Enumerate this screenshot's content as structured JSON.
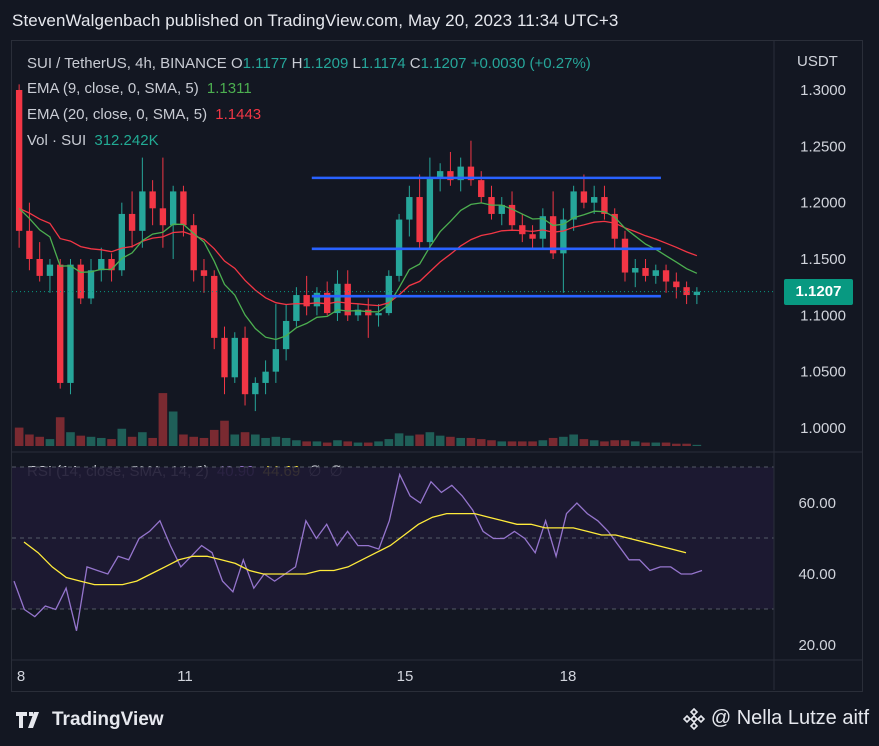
{
  "header": "StevenWalgenbach published on TradingView.com, May 20, 2023 11:34 UTC+3",
  "symbol": {
    "name": "SUI / TetherUS, 4h, BINANCE",
    "open_label": "O",
    "open": "1.1177",
    "high_label": "H",
    "high": "1.1209",
    "low_label": "L",
    "low": "1.1174",
    "close_label": "C",
    "close": "1.1207",
    "change": "+0.0030 (+0.27%)"
  },
  "indicators": {
    "ema9_label": "EMA (9, close, 0, SMA, 5)",
    "ema9_value": "1.1311",
    "ema20_label": "EMA (20, close, 0, SMA, 5)",
    "ema20_value": "1.1443",
    "vol_label": "Vol · SUI",
    "vol_value": "312.242K",
    "rsi_label": "RSI (14, close, SMA, 14, 2)",
    "rsi_value": "40.90",
    "rsi_ma_value": "44.69",
    "rsi_extra1": "∅",
    "rsi_extra2": "∅"
  },
  "price_axis": {
    "unit": "USDT",
    "ticks": [
      "1.3000",
      "1.2500",
      "1.2000",
      "1.1500",
      "1.1000",
      "1.0500",
      "1.0000"
    ],
    "current_price": "1.1207"
  },
  "rsi_axis": {
    "ticks": [
      "60.00",
      "40.00",
      "20.00"
    ]
  },
  "time_axis": {
    "ticks": [
      "8",
      "11",
      "15",
      "18"
    ]
  },
  "footer": {
    "logo": "TradingView",
    "credit": "@ Nella Lutze aitf"
  },
  "colors": {
    "background": "#131722",
    "up": "#26a69a",
    "down": "#f23645",
    "ema9": "#4caf50",
    "ema20": "#f23645",
    "channel": "#2962ff",
    "rsi": "#9575cd",
    "rsi_ma": "#ffeb3b",
    "badge": "#089981"
  },
  "chart_data": {
    "type": "candlestick",
    "price_range": [
      0.985,
      1.315
    ],
    "rsi_range": [
      18,
      68
    ],
    "channel_lines": [
      {
        "from_index": 29,
        "to_index": 62,
        "value": 1.222
      },
      {
        "from_index": 29,
        "to_index": 62,
        "value": 1.159
      },
      {
        "from_index": 29,
        "to_index": 62,
        "value": 1.117
      }
    ],
    "candles": [
      {
        "o": 1.3,
        "h": 1.305,
        "l": 1.16,
        "c": 1.175,
        "v": 0.16
      },
      {
        "o": 1.175,
        "h": 1.2,
        "l": 1.14,
        "c": 1.15,
        "v": 0.1
      },
      {
        "o": 1.15,
        "h": 1.165,
        "l": 1.13,
        "c": 1.135,
        "v": 0.08
      },
      {
        "o": 1.135,
        "h": 1.15,
        "l": 1.12,
        "c": 1.145,
        "v": 0.06
      },
      {
        "o": 1.145,
        "h": 1.15,
        "l": 1.035,
        "c": 1.04,
        "v": 0.25
      },
      {
        "o": 1.04,
        "h": 1.15,
        "l": 1.03,
        "c": 1.145,
        "v": 0.12
      },
      {
        "o": 1.145,
        "h": 1.15,
        "l": 1.11,
        "c": 1.115,
        "v": 0.09
      },
      {
        "o": 1.115,
        "h": 1.15,
        "l": 1.11,
        "c": 1.14,
        "v": 0.08
      },
      {
        "o": 1.14,
        "h": 1.16,
        "l": 1.13,
        "c": 1.15,
        "v": 0.07
      },
      {
        "o": 1.15,
        "h": 1.155,
        "l": 1.13,
        "c": 1.14,
        "v": 0.06
      },
      {
        "o": 1.14,
        "h": 1.2,
        "l": 1.135,
        "c": 1.19,
        "v": 0.15
      },
      {
        "o": 1.19,
        "h": 1.21,
        "l": 1.16,
        "c": 1.175,
        "v": 0.08
      },
      {
        "o": 1.175,
        "h": 1.24,
        "l": 1.16,
        "c": 1.21,
        "v": 0.12
      },
      {
        "o": 1.21,
        "h": 1.22,
        "l": 1.18,
        "c": 1.195,
        "v": 0.07
      },
      {
        "o": 1.195,
        "h": 1.24,
        "l": 1.16,
        "c": 1.18,
        "v": 0.46
      },
      {
        "o": 1.18,
        "h": 1.215,
        "l": 1.15,
        "c": 1.21,
        "v": 0.3
      },
      {
        "o": 1.21,
        "h": 1.215,
        "l": 1.17,
        "c": 1.18,
        "v": 0.1
      },
      {
        "o": 1.18,
        "h": 1.19,
        "l": 1.13,
        "c": 1.14,
        "v": 0.08
      },
      {
        "o": 1.14,
        "h": 1.15,
        "l": 1.12,
        "c": 1.135,
        "v": 0.07
      },
      {
        "o": 1.135,
        "h": 1.14,
        "l": 1.07,
        "c": 1.08,
        "v": 0.14
      },
      {
        "o": 1.08,
        "h": 1.09,
        "l": 1.03,
        "c": 1.045,
        "v": 0.22
      },
      {
        "o": 1.045,
        "h": 1.085,
        "l": 1.04,
        "c": 1.08,
        "v": 0.1
      },
      {
        "o": 1.08,
        "h": 1.09,
        "l": 1.02,
        "c": 1.03,
        "v": 0.12
      },
      {
        "o": 1.03,
        "h": 1.045,
        "l": 1.015,
        "c": 1.04,
        "v": 0.1
      },
      {
        "o": 1.04,
        "h": 1.06,
        "l": 1.03,
        "c": 1.05,
        "v": 0.07
      },
      {
        "o": 1.05,
        "h": 1.11,
        "l": 1.04,
        "c": 1.07,
        "v": 0.08
      },
      {
        "o": 1.07,
        "h": 1.11,
        "l": 1.06,
        "c": 1.095,
        "v": 0.07
      },
      {
        "o": 1.095,
        "h": 1.125,
        "l": 1.09,
        "c": 1.118,
        "v": 0.05
      },
      {
        "o": 1.118,
        "h": 1.135,
        "l": 1.1,
        "c": 1.108,
        "v": 0.04
      },
      {
        "o": 1.108,
        "h": 1.125,
        "l": 1.1,
        "c": 1.12,
        "v": 0.04
      },
      {
        "o": 1.12,
        "h": 1.13,
        "l": 1.1,
        "c": 1.102,
        "v": 0.03
      },
      {
        "o": 1.102,
        "h": 1.14,
        "l": 1.095,
        "c": 1.128,
        "v": 0.05
      },
      {
        "o": 1.128,
        "h": 1.14,
        "l": 1.095,
        "c": 1.1,
        "v": 0.04
      },
      {
        "o": 1.1,
        "h": 1.11,
        "l": 1.095,
        "c": 1.105,
        "v": 0.03
      },
      {
        "o": 1.105,
        "h": 1.115,
        "l": 1.08,
        "c": 1.1,
        "v": 0.03
      },
      {
        "o": 1.1,
        "h": 1.11,
        "l": 1.09,
        "c": 1.102,
        "v": 0.04
      },
      {
        "o": 1.102,
        "h": 1.14,
        "l": 1.1,
        "c": 1.135,
        "v": 0.06
      },
      {
        "o": 1.135,
        "h": 1.19,
        "l": 1.13,
        "c": 1.185,
        "v": 0.11
      },
      {
        "o": 1.185,
        "h": 1.215,
        "l": 1.17,
        "c": 1.205,
        "v": 0.09
      },
      {
        "o": 1.205,
        "h": 1.225,
        "l": 1.16,
        "c": 1.165,
        "v": 0.1
      },
      {
        "o": 1.165,
        "h": 1.24,
        "l": 1.16,
        "c": 1.222,
        "v": 0.12
      },
      {
        "o": 1.222,
        "h": 1.235,
        "l": 1.21,
        "c": 1.228,
        "v": 0.09
      },
      {
        "o": 1.228,
        "h": 1.245,
        "l": 1.215,
        "c": 1.22,
        "v": 0.08
      },
      {
        "o": 1.22,
        "h": 1.24,
        "l": 1.21,
        "c": 1.232,
        "v": 0.07
      },
      {
        "o": 1.232,
        "h": 1.255,
        "l": 1.215,
        "c": 1.22,
        "v": 0.07
      },
      {
        "o": 1.22,
        "h": 1.228,
        "l": 1.2,
        "c": 1.205,
        "v": 0.06
      },
      {
        "o": 1.205,
        "h": 1.215,
        "l": 1.185,
        "c": 1.19,
        "v": 0.05
      },
      {
        "o": 1.19,
        "h": 1.205,
        "l": 1.18,
        "c": 1.198,
        "v": 0.04
      },
      {
        "o": 1.198,
        "h": 1.21,
        "l": 1.175,
        "c": 1.18,
        "v": 0.04
      },
      {
        "o": 1.18,
        "h": 1.19,
        "l": 1.165,
        "c": 1.172,
        "v": 0.04
      },
      {
        "o": 1.172,
        "h": 1.18,
        "l": 1.16,
        "c": 1.168,
        "v": 0.04
      },
      {
        "o": 1.168,
        "h": 1.195,
        "l": 1.16,
        "c": 1.188,
        "v": 0.05
      },
      {
        "o": 1.188,
        "h": 1.21,
        "l": 1.15,
        "c": 1.155,
        "v": 0.07
      },
      {
        "o": 1.155,
        "h": 1.195,
        "l": 1.12,
        "c": 1.185,
        "v": 0.08
      },
      {
        "o": 1.185,
        "h": 1.215,
        "l": 1.175,
        "c": 1.21,
        "v": 0.1
      },
      {
        "o": 1.21,
        "h": 1.225,
        "l": 1.195,
        "c": 1.2,
        "v": 0.06
      },
      {
        "o": 1.2,
        "h": 1.215,
        "l": 1.19,
        "c": 1.205,
        "v": 0.05
      },
      {
        "o": 1.205,
        "h": 1.215,
        "l": 1.185,
        "c": 1.19,
        "v": 0.04
      },
      {
        "o": 1.19,
        "h": 1.195,
        "l": 1.16,
        "c": 1.168,
        "v": 0.05
      },
      {
        "o": 1.168,
        "h": 1.175,
        "l": 1.13,
        "c": 1.138,
        "v": 0.05
      },
      {
        "o": 1.138,
        "h": 1.15,
        "l": 1.125,
        "c": 1.142,
        "v": 0.04
      },
      {
        "o": 1.142,
        "h": 1.15,
        "l": 1.13,
        "c": 1.135,
        "v": 0.03
      },
      {
        "o": 1.135,
        "h": 1.145,
        "l": 1.128,
        "c": 1.14,
        "v": 0.03
      },
      {
        "o": 1.14,
        "h": 1.145,
        "l": 1.12,
        "c": 1.13,
        "v": 0.03
      },
      {
        "o": 1.13,
        "h": 1.138,
        "l": 1.115,
        "c": 1.125,
        "v": 0.02
      },
      {
        "o": 1.125,
        "h": 1.13,
        "l": 1.11,
        "c": 1.118,
        "v": 0.02
      },
      {
        "o": 1.118,
        "h": 1.125,
        "l": 1.11,
        "c": 1.121,
        "v": 0.01
      }
    ],
    "rsi": [
      38,
      30,
      28,
      31,
      30,
      36,
      24,
      42,
      41,
      40,
      45,
      44,
      50,
      52,
      55,
      48,
      42,
      45,
      48,
      46,
      38,
      35,
      44,
      36,
      40,
      38,
      40,
      42,
      55,
      50,
      54,
      48,
      52,
      48,
      48,
      47,
      55,
      68,
      62,
      60,
      66,
      63,
      65,
      62,
      58,
      52,
      50,
      50,
      52,
      50,
      46,
      55,
      45,
      57,
      60,
      57,
      55,
      52,
      48,
      44,
      44,
      41,
      42,
      42,
      40,
      40,
      41
    ],
    "rsi_ma": [
      49,
      46,
      42,
      39,
      38,
      37,
      37,
      37,
      38,
      40,
      42,
      44,
      45,
      45,
      44,
      43,
      41,
      40,
      40,
      40,
      40,
      41,
      41,
      42,
      44,
      46,
      48,
      51,
      54,
      56,
      57,
      57,
      57,
      56,
      55,
      54,
      54,
      53,
      53,
      53,
      52,
      51,
      51,
      50,
      49,
      48,
      47,
      46
    ]
  }
}
